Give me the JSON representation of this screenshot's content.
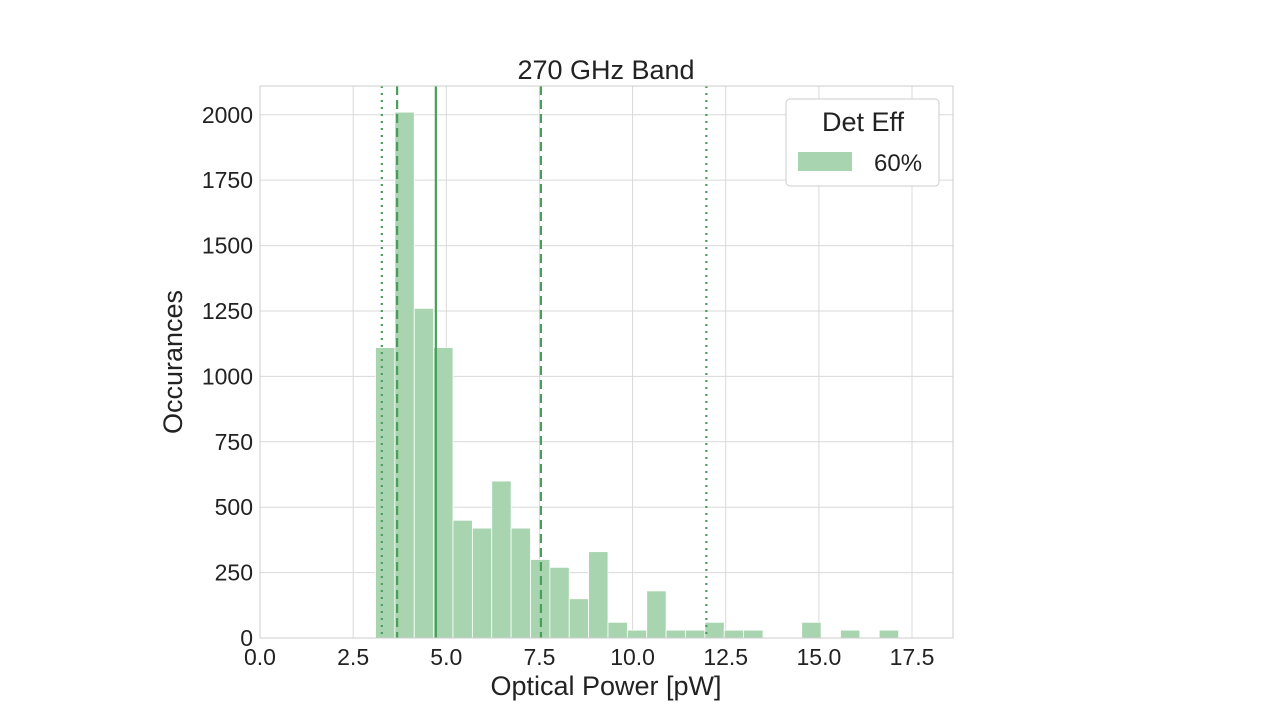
{
  "chart_data": {
    "type": "bar",
    "title": "270 GHz Band",
    "xlabel": "Optical Power [pW]",
    "ylabel": "Occurances",
    "xlim": [
      0,
      18.6
    ],
    "ylim": [
      0,
      2110
    ],
    "xticks": [
      "0.0",
      "2.5",
      "5.0",
      "7.5",
      "10.0",
      "12.5",
      "15.0",
      "17.5"
    ],
    "xtick_values": [
      0,
      2.5,
      5,
      7.5,
      10,
      12.5,
      15,
      17.5
    ],
    "yticks": [
      "0",
      "250",
      "500",
      "750",
      "1000",
      "1250",
      "1500",
      "1750",
      "2000"
    ],
    "ytick_values": [
      0,
      250,
      500,
      750,
      1000,
      1250,
      1500,
      1750,
      2000
    ],
    "grid": true,
    "legend": {
      "title": "Det Eff",
      "placement": "top-right"
    },
    "series": [
      {
        "name": "60%",
        "color": "#a8d5b0",
        "bin_width": 0.52,
        "bin_left_edges": [
          3.1,
          3.62,
          4.14,
          4.66,
          5.18,
          5.7,
          6.22,
          6.74,
          7.26,
          7.78,
          8.3,
          8.82,
          9.34,
          9.86,
          10.38,
          10.9,
          11.42,
          11.94,
          12.46,
          12.98,
          13.5,
          14.02,
          14.54,
          15.06,
          15.58,
          16.1,
          16.62
        ],
        "values": [
          1110,
          2010,
          1260,
          1110,
          450,
          420,
          600,
          420,
          300,
          270,
          150,
          330,
          60,
          30,
          180,
          30,
          30,
          60,
          30,
          30,
          0,
          0,
          60,
          0,
          30,
          0,
          30
        ]
      }
    ],
    "reference_lines": [
      {
        "style": "dotted",
        "x": 3.27,
        "color": "#4a9e5c"
      },
      {
        "style": "dashed",
        "x": 3.68,
        "color": "#4a9e5c"
      },
      {
        "style": "solid",
        "x": 4.72,
        "color": "#4a9e5c"
      },
      {
        "style": "dashed",
        "x": 7.54,
        "color": "#4a9e5c"
      },
      {
        "style": "dotted",
        "x": 11.98,
        "color": "#4a9e5c"
      }
    ],
    "colors": {
      "bar": "#a8d5b0",
      "line": "#4a9e5c",
      "grid": "#d9d9d9",
      "frame": "#cccccc"
    }
  }
}
